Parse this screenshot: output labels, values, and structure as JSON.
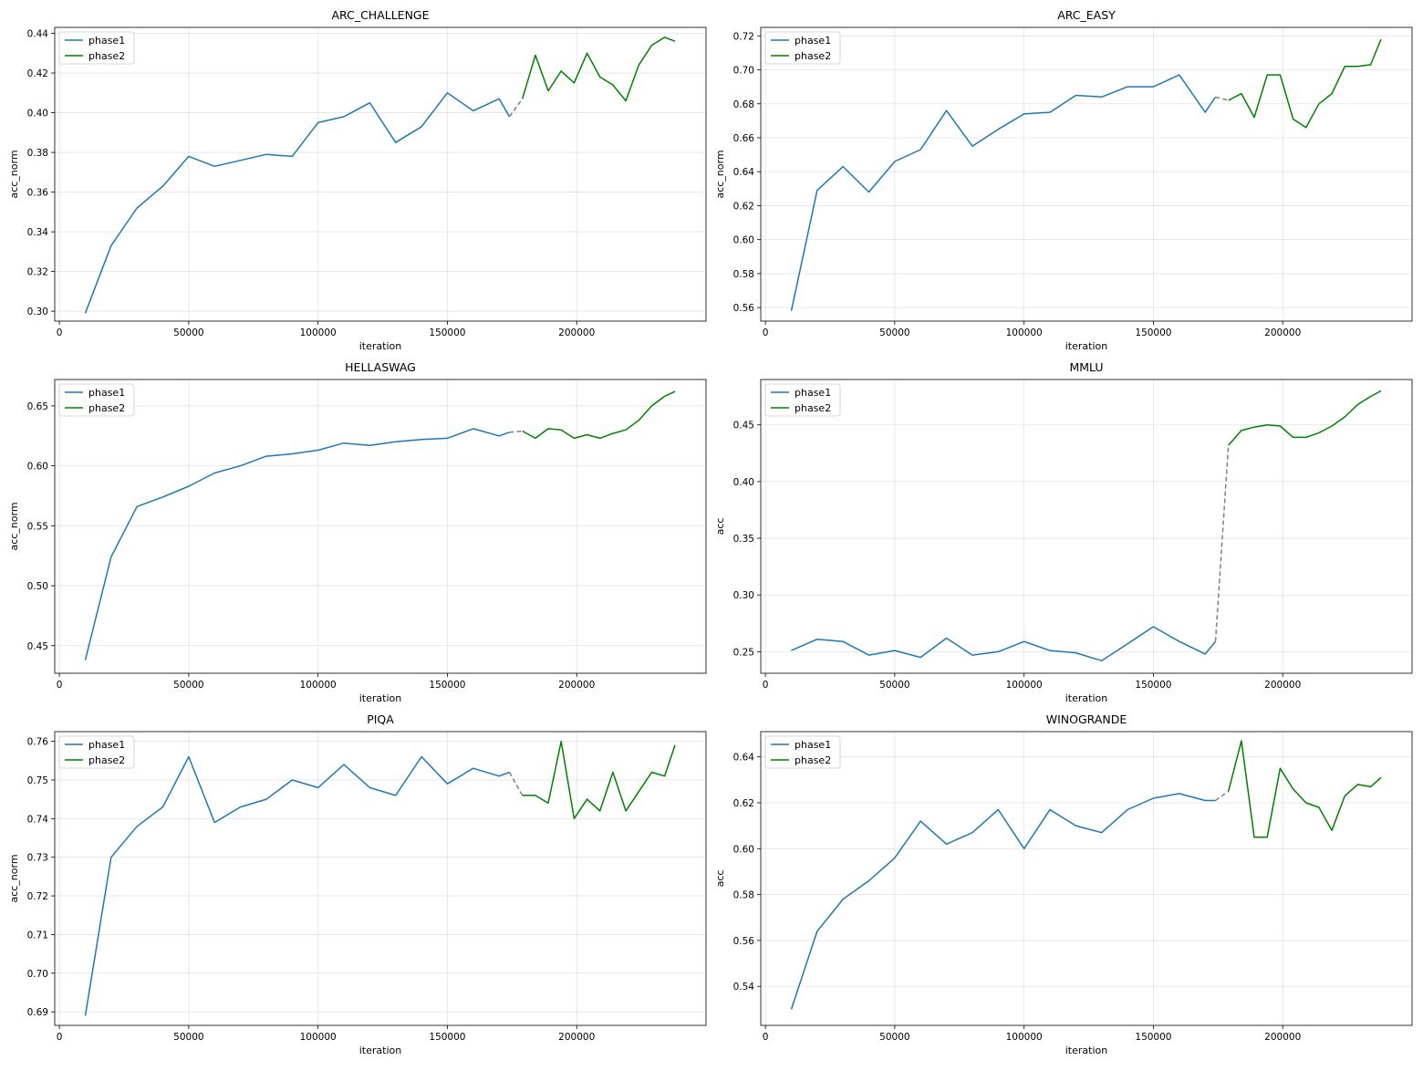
{
  "colors": {
    "phase1": "#1f77b4",
    "phase2": "#008000",
    "bridge": "#808080"
  },
  "chart_data": [
    {
      "type": "line",
      "title": "ARC_CHALLENGE",
      "xlabel": "iteration",
      "ylabel": "acc_norm",
      "xlim": [
        -1800,
        250000
      ],
      "ylim": [
        0.295,
        0.443
      ],
      "xticks": [
        0,
        50000,
        100000,
        150000,
        200000
      ],
      "xtick_labels": [
        "0",
        "50000",
        "100000",
        "150000",
        "200000"
      ],
      "yticks": [
        0.3,
        0.32,
        0.34,
        0.36,
        0.38,
        0.4,
        0.42,
        0.44
      ],
      "ytick_labels": [
        "0.30",
        "0.32",
        "0.34",
        "0.36",
        "0.38",
        "0.40",
        "0.42",
        "0.44"
      ],
      "grid": true,
      "legend": "upper-left",
      "series": [
        {
          "name": "phase1",
          "x": [
            10000,
            20000,
            30000,
            40000,
            50000,
            60000,
            70000,
            80000,
            90000,
            100000,
            110000,
            120000,
            130000,
            140000,
            150000,
            160000,
            170000,
            174000
          ],
          "y": [
            0.299,
            0.333,
            0.352,
            0.363,
            0.378,
            0.373,
            0.376,
            0.379,
            0.378,
            0.395,
            0.398,
            0.405,
            0.385,
            0.393,
            0.41,
            0.401,
            0.407,
            0.398
          ]
        },
        {
          "name": "phase2",
          "x": [
            179000,
            184000,
            189000,
            194000,
            199000,
            204000,
            209000,
            214000,
            219000,
            224000,
            229000,
            234000,
            238000
          ],
          "y": [
            0.407,
            0.429,
            0.411,
            0.421,
            0.415,
            0.43,
            0.418,
            0.414,
            0.406,
            0.424,
            0.434,
            0.438,
            0.436
          ]
        }
      ]
    },
    {
      "type": "line",
      "title": "ARC_EASY",
      "xlabel": "iteration",
      "ylabel": "acc_norm",
      "xlim": [
        -1800,
        250000
      ],
      "ylim": [
        0.552,
        0.725
      ],
      "xticks": [
        0,
        50000,
        100000,
        150000,
        200000
      ],
      "xtick_labels": [
        "0",
        "50000",
        "100000",
        "150000",
        "200000"
      ],
      "yticks": [
        0.56,
        0.58,
        0.6,
        0.62,
        0.64,
        0.66,
        0.68,
        0.7,
        0.72
      ],
      "ytick_labels": [
        "0.56",
        "0.58",
        "0.60",
        "0.62",
        "0.64",
        "0.66",
        "0.68",
        "0.70",
        "0.72"
      ],
      "grid": true,
      "legend": "upper-left",
      "series": [
        {
          "name": "phase1",
          "x": [
            10000,
            20000,
            30000,
            40000,
            50000,
            60000,
            70000,
            80000,
            90000,
            100000,
            110000,
            120000,
            130000,
            140000,
            150000,
            160000,
            170000,
            174000
          ],
          "y": [
            0.558,
            0.629,
            0.643,
            0.628,
            0.646,
            0.653,
            0.676,
            0.655,
            0.665,
            0.674,
            0.675,
            0.685,
            0.684,
            0.69,
            0.69,
            0.697,
            0.675,
            0.684
          ]
        },
        {
          "name": "phase2",
          "x": [
            179000,
            184000,
            189000,
            194000,
            199000,
            204000,
            209000,
            214000,
            219000,
            224000,
            229000,
            234000,
            238000
          ],
          "y": [
            0.682,
            0.686,
            0.672,
            0.697,
            0.697,
            0.671,
            0.666,
            0.68,
            0.686,
            0.702,
            0.702,
            0.703,
            0.718
          ]
        }
      ]
    },
    {
      "type": "line",
      "title": "HELLASWAG",
      "xlabel": "iteration",
      "ylabel": "acc_norm",
      "xlim": [
        -1800,
        250000
      ],
      "ylim": [
        0.427,
        0.672
      ],
      "xticks": [
        0,
        50000,
        100000,
        150000,
        200000
      ],
      "xtick_labels": [
        "0",
        "50000",
        "100000",
        "150000",
        "200000"
      ],
      "yticks": [
        0.45,
        0.5,
        0.55,
        0.6,
        0.65
      ],
      "ytick_labels": [
        "0.45",
        "0.50",
        "0.55",
        "0.60",
        "0.65"
      ],
      "grid": true,
      "legend": "upper-left",
      "series": [
        {
          "name": "phase1",
          "x": [
            10000,
            20000,
            30000,
            40000,
            50000,
            60000,
            70000,
            80000,
            90000,
            100000,
            110000,
            120000,
            130000,
            140000,
            150000,
            160000,
            170000,
            174000
          ],
          "y": [
            0.438,
            0.524,
            0.566,
            0.574,
            0.583,
            0.594,
            0.6,
            0.608,
            0.61,
            0.613,
            0.619,
            0.617,
            0.62,
            0.622,
            0.623,
            0.631,
            0.625,
            0.628
          ]
        },
        {
          "name": "phase2",
          "x": [
            179000,
            184000,
            189000,
            194000,
            199000,
            204000,
            209000,
            214000,
            219000,
            224000,
            229000,
            234000,
            238000
          ],
          "y": [
            0.629,
            0.623,
            0.631,
            0.63,
            0.623,
            0.626,
            0.623,
            0.627,
            0.63,
            0.638,
            0.65,
            0.658,
            0.662
          ]
        }
      ]
    },
    {
      "type": "line",
      "title": "MMLU",
      "xlabel": "iteration",
      "ylabel": "acc",
      "xlim": [
        -1800,
        250000
      ],
      "ylim": [
        0.231,
        0.49
      ],
      "xticks": [
        0,
        50000,
        100000,
        150000,
        200000
      ],
      "xtick_labels": [
        "0",
        "50000",
        "100000",
        "150000",
        "200000"
      ],
      "yticks": [
        0.25,
        0.3,
        0.35,
        0.4,
        0.45
      ],
      "ytick_labels": [
        "0.25",
        "0.30",
        "0.35",
        "0.40",
        "0.45"
      ],
      "grid": true,
      "legend": "upper-left",
      "series": [
        {
          "name": "phase1",
          "x": [
            10000,
            20000,
            30000,
            40000,
            50000,
            60000,
            70000,
            80000,
            90000,
            100000,
            110000,
            120000,
            130000,
            140000,
            150000,
            160000,
            170000,
            174000
          ],
          "y": [
            0.251,
            0.261,
            0.259,
            0.247,
            0.251,
            0.245,
            0.262,
            0.247,
            0.25,
            0.259,
            0.251,
            0.249,
            0.242,
            0.257,
            0.272,
            0.259,
            0.248,
            0.259
          ]
        },
        {
          "name": "phase2",
          "x": [
            179000,
            184000,
            189000,
            194000,
            199000,
            204000,
            209000,
            214000,
            219000,
            224000,
            229000,
            234000,
            238000
          ],
          "y": [
            0.432,
            0.445,
            0.448,
            0.45,
            0.449,
            0.439,
            0.439,
            0.443,
            0.449,
            0.457,
            0.468,
            0.475,
            0.48
          ]
        }
      ]
    },
    {
      "type": "line",
      "title": "PIQA",
      "xlabel": "iteration",
      "ylabel": "acc_norm",
      "xlim": [
        -1800,
        250000
      ],
      "ylim": [
        0.6865,
        0.7625
      ],
      "xticks": [
        0,
        50000,
        100000,
        150000,
        200000
      ],
      "xtick_labels": [
        "0",
        "50000",
        "100000",
        "150000",
        "200000"
      ],
      "yticks": [
        0.69,
        0.7,
        0.71,
        0.72,
        0.73,
        0.74,
        0.75,
        0.76
      ],
      "ytick_labels": [
        "0.69",
        "0.70",
        "0.71",
        "0.72",
        "0.73",
        "0.74",
        "0.75",
        "0.76"
      ],
      "grid": true,
      "legend": "upper-left",
      "series": [
        {
          "name": "phase1",
          "x": [
            10000,
            20000,
            30000,
            40000,
            50000,
            60000,
            70000,
            80000,
            90000,
            100000,
            110000,
            120000,
            130000,
            140000,
            150000,
            160000,
            170000,
            174000
          ],
          "y": [
            0.689,
            0.73,
            0.738,
            0.743,
            0.756,
            0.739,
            0.743,
            0.745,
            0.75,
            0.748,
            0.754,
            0.748,
            0.746,
            0.756,
            0.749,
            0.753,
            0.751,
            0.752
          ]
        },
        {
          "name": "phase2",
          "x": [
            179000,
            184000,
            189000,
            194000,
            199000,
            204000,
            209000,
            214000,
            219000,
            224000,
            229000,
            234000,
            238000
          ],
          "y": [
            0.746,
            0.746,
            0.744,
            0.76,
            0.74,
            0.745,
            0.742,
            0.752,
            0.742,
            0.747,
            0.752,
            0.751,
            0.759
          ]
        }
      ]
    },
    {
      "type": "line",
      "title": "WINOGRANDE",
      "xlabel": "iteration",
      "ylabel": "acc",
      "xlim": [
        -1800,
        250000
      ],
      "ylim": [
        0.523,
        0.651
      ],
      "xticks": [
        0,
        50000,
        100000,
        150000,
        200000
      ],
      "xtick_labels": [
        "0",
        "50000",
        "100000",
        "150000",
        "200000"
      ],
      "yticks": [
        0.54,
        0.56,
        0.58,
        0.6,
        0.62,
        0.64
      ],
      "ytick_labels": [
        "0.54",
        "0.56",
        "0.58",
        "0.60",
        "0.62",
        "0.64"
      ],
      "grid": true,
      "legend": "upper-left",
      "series": [
        {
          "name": "phase1",
          "x": [
            10000,
            20000,
            30000,
            40000,
            50000,
            60000,
            70000,
            80000,
            90000,
            100000,
            110000,
            120000,
            130000,
            140000,
            150000,
            160000,
            170000,
            174000
          ],
          "y": [
            0.53,
            0.564,
            0.578,
            0.586,
            0.596,
            0.612,
            0.602,
            0.607,
            0.617,
            0.6,
            0.617,
            0.61,
            0.607,
            0.617,
            0.622,
            0.624,
            0.621,
            0.621
          ]
        },
        {
          "name": "phase2",
          "x": [
            179000,
            184000,
            189000,
            194000,
            199000,
            204000,
            209000,
            214000,
            219000,
            224000,
            229000,
            234000,
            238000
          ],
          "y": [
            0.625,
            0.647,
            0.605,
            0.605,
            0.635,
            0.626,
            0.62,
            0.618,
            0.608,
            0.623,
            0.628,
            0.627,
            0.631
          ]
        }
      ]
    }
  ]
}
